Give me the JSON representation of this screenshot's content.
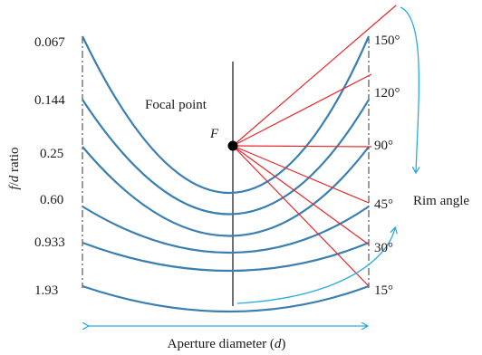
{
  "diagram": {
    "ratios": [
      "0.067",
      "0.144",
      "0.25",
      "0.60",
      "0.933",
      "1.93"
    ],
    "ratio_axis": {
      "italic_f": "f",
      "slash": "/",
      "italic_d": "d",
      "suffix": " ratio"
    },
    "angles": [
      "150°",
      "120°",
      "90°",
      "45°",
      "30°",
      "15°"
    ],
    "focal_point_label": "Focal point",
    "focal_symbol": "F",
    "rim_angle_label": "Rim angle",
    "aperture": {
      "prefix": "Aperture diameter (",
      "italic": "d",
      "suffix": ")"
    },
    "colors": {
      "curves": "#3a7fb0",
      "rays": "#e8262a",
      "arrows": "#29abe2",
      "lines": "#333333",
      "text": "#1a1a1a"
    }
  }
}
